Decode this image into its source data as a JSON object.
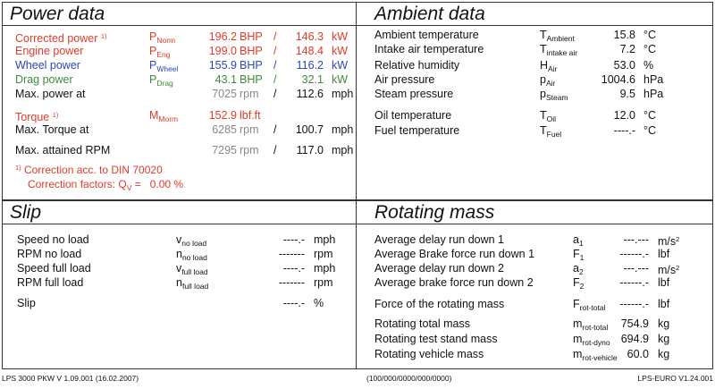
{
  "power": {
    "title": "Power data",
    "rows": [
      {
        "label": "Corrected power",
        "marker": "1)",
        "sym": "P",
        "sub": "Norm",
        "v1": "196.2",
        "u1": "BHP",
        "sep": "/",
        "v2": "146.3",
        "u2": "kW"
      },
      {
        "label": "Engine power",
        "sym": "P",
        "sub": "Eng",
        "v1": "199.0",
        "u1": "BHP",
        "sep": "/",
        "v2": "148.4",
        "u2": "kW"
      },
      {
        "label": "Wheel power",
        "sym": "P",
        "sub": "Wheel",
        "v1": "155.9",
        "u1": "BHP",
        "sep": "/",
        "v2": "116.2",
        "u2": "kW"
      },
      {
        "label": "Drag power",
        "sym": "P",
        "sub": "Drag",
        "v1": "43.1",
        "u1": "BHP",
        "sep": "/",
        "v2": "32.1",
        "u2": "kW"
      },
      {
        "label": "Max. power at",
        "v1": "7025",
        "u1": "rpm",
        "sep": "/",
        "v2": "112.6",
        "u2": "mph"
      },
      {
        "label": "Torque",
        "marker": "1)",
        "sym": "M",
        "sub": "Morm",
        "v1": "152.9",
        "u1": "lbf.ft"
      },
      {
        "label": "Max. Torque at",
        "v1": "6285",
        "u1": "rpm",
        "sep": "/",
        "v2": "100.7",
        "u2": "mph"
      },
      {
        "label": "Max. attained RPM",
        "v1": "7295",
        "u1": "rpm",
        "sep": "/",
        "v2": "117.0",
        "u2": "mph"
      }
    ],
    "note1_marker": "1)",
    "note1": "Correction acc. to DIN 70020",
    "note2": "Correction factors: Q",
    "note2_sub": "V",
    "note2_value": "=   0.00 %"
  },
  "ambient": {
    "title": "Ambient data",
    "rows": [
      {
        "label": "Ambient temperature",
        "sym": "T",
        "sub": "Ambient",
        "value": "15.8",
        "unit": "°C"
      },
      {
        "label": "Intake air temperature",
        "sym": "T",
        "sub": "intake air",
        "value": "7.2",
        "unit": "°C"
      },
      {
        "label": "Relative humidity",
        "sym": "H",
        "sub": "Air",
        "value": "53.0",
        "unit": "%"
      },
      {
        "label": "Air pressure",
        "sym": "p",
        "sub": "Air",
        "value": "1004.6",
        "unit": "hPa"
      },
      {
        "label": "Steam pressure",
        "sym": "p",
        "sub": "Steam",
        "value": "9.5",
        "unit": "hPa"
      },
      {
        "label": "Oil temperature",
        "sym": "T",
        "sub": "Oil",
        "value": "12.0",
        "unit": "°C"
      },
      {
        "label": "Fuel temperature",
        "sym": "T",
        "sub": "Fuel",
        "value": "----.-",
        "unit": "°C"
      }
    ]
  },
  "slip": {
    "title": "Slip",
    "rows": [
      {
        "label": "Speed no load",
        "sym": "v",
        "sub": "no load",
        "value": "----.-",
        "unit": "mph"
      },
      {
        "label": "RPM no load",
        "sym": "n",
        "sub": "no load",
        "value": "-------",
        "unit": "rpm"
      },
      {
        "label": "Speed full load",
        "sym": "v",
        "sub": "full load",
        "value": "----.-",
        "unit": "mph"
      },
      {
        "label": "RPM full load",
        "sym": "n",
        "sub": "full load",
        "value": "-------",
        "unit": "rpm"
      },
      {
        "label": "Slip",
        "value": "----.-",
        "unit": "%"
      }
    ]
  },
  "rotating": {
    "title": "Rotating mass",
    "rows": [
      {
        "label": "Average delay run down 1",
        "sym": "a",
        "sub": "1",
        "value": "---.---",
        "unit": "m/s",
        "unit_sup": "2"
      },
      {
        "label": "Average Brake force run down 1",
        "sym": "F",
        "sub": "1",
        "value": "------.-",
        "unit": "lbf"
      },
      {
        "label": "Average delay run down 2",
        "sym": "a",
        "sub": "2",
        "value": "---.---",
        "unit": "m/s",
        "unit_sup": "2"
      },
      {
        "label": "Average brake force run down 2",
        "sym": "F",
        "sub": "2",
        "value": "------.-",
        "unit": "lbf"
      },
      {
        "label": "Force of the rotating mass",
        "sym": "F",
        "sub": "rot-total",
        "value": "------.-",
        "unit": "lbf"
      },
      {
        "label": "Rotating total mass",
        "sym": "m",
        "sub": "rot-total",
        "value": "754.9",
        "unit": "kg"
      },
      {
        "label": "Rotating test stand mass",
        "sym": "m",
        "sub": "rot-dyno",
        "value": "694.9",
        "unit": "kg"
      },
      {
        "label": "Rotating vehicle mass",
        "sym": "m",
        "sub": "rot-vehicle",
        "value": "60.0",
        "unit": "kg"
      }
    ]
  },
  "footer": {
    "left": "LPS 3000 PKW V 1.09.001 (16.02.2007)",
    "center": "(100/000/0000/000/0000)",
    "right": "LPS-EURO V1.24.001"
  },
  "colors": {
    "corrected": "#e03a2a",
    "engine": "#e03a2a",
    "wheel": "#2a48b8",
    "drag": "#3f8a3a",
    "units": "#888888"
  }
}
